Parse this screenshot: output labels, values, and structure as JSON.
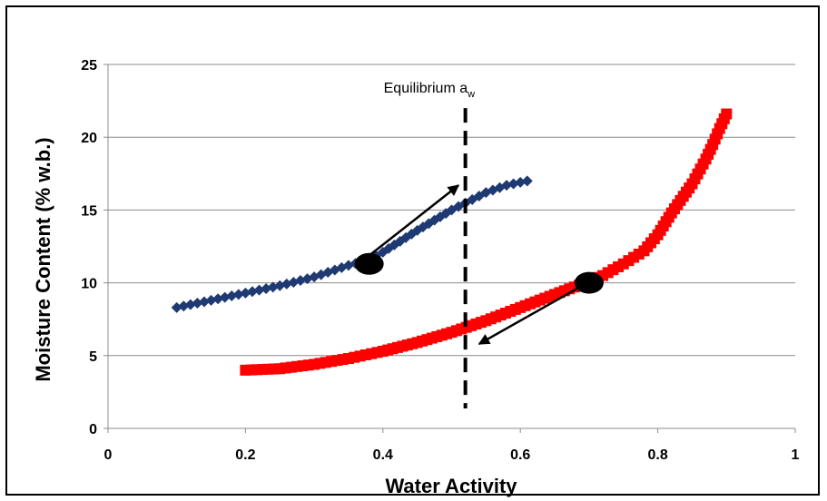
{
  "chart_data": {
    "type": "scatter",
    "xlabel": "Water Activity",
    "ylabel": "Moisture Content (% w.b.)",
    "xlim": [
      0,
      1
    ],
    "ylim": [
      0,
      25
    ],
    "x_ticks": [
      "0",
      "0.2",
      "0.4",
      "0.6",
      "0.8",
      "1"
    ],
    "y_ticks": [
      "0",
      "5",
      "10",
      "15",
      "20",
      "25"
    ],
    "grid": "horizontal",
    "series": [
      {
        "color": "#1f3a73",
        "marker": "diamond",
        "x": [
          0.1,
          0.15,
          0.2,
          0.25,
          0.3,
          0.35,
          0.38,
          0.4,
          0.45,
          0.5,
          0.55,
          0.58,
          0.61
        ],
        "y": [
          8.3,
          8.8,
          9.3,
          9.8,
          10.4,
          11.2,
          11.6,
          12.1,
          13.6,
          15.0,
          16.2,
          16.7,
          17.0
        ]
      },
      {
        "color": "#ff0000",
        "marker": "square",
        "x": [
          0.2,
          0.25,
          0.3,
          0.35,
          0.4,
          0.45,
          0.5,
          0.55,
          0.6,
          0.65,
          0.7,
          0.72,
          0.75,
          0.78,
          0.8,
          0.82,
          0.85,
          0.87,
          0.88,
          0.89,
          0.9
        ],
        "y": [
          4.0,
          4.1,
          4.4,
          4.8,
          5.3,
          5.9,
          6.6,
          7.4,
          8.3,
          9.2,
          10.1,
          10.5,
          11.3,
          12.2,
          13.3,
          14.8,
          16.8,
          18.5,
          19.5,
          20.6,
          21.6
        ]
      }
    ],
    "equilibrium_line": {
      "x": 0.52,
      "label": "Equilibrium a",
      "label_sub": "w"
    },
    "highlight_points": [
      {
        "x": 0.38,
        "y": 11.3
      },
      {
        "x": 0.7,
        "y": 10.0
      }
    ],
    "arrows": [
      {
        "from": [
          0.37,
          11.5
        ],
        "to": [
          0.51,
          16.7
        ]
      },
      {
        "from": [
          0.69,
          9.8
        ],
        "to": [
          0.54,
          5.8
        ]
      }
    ]
  }
}
